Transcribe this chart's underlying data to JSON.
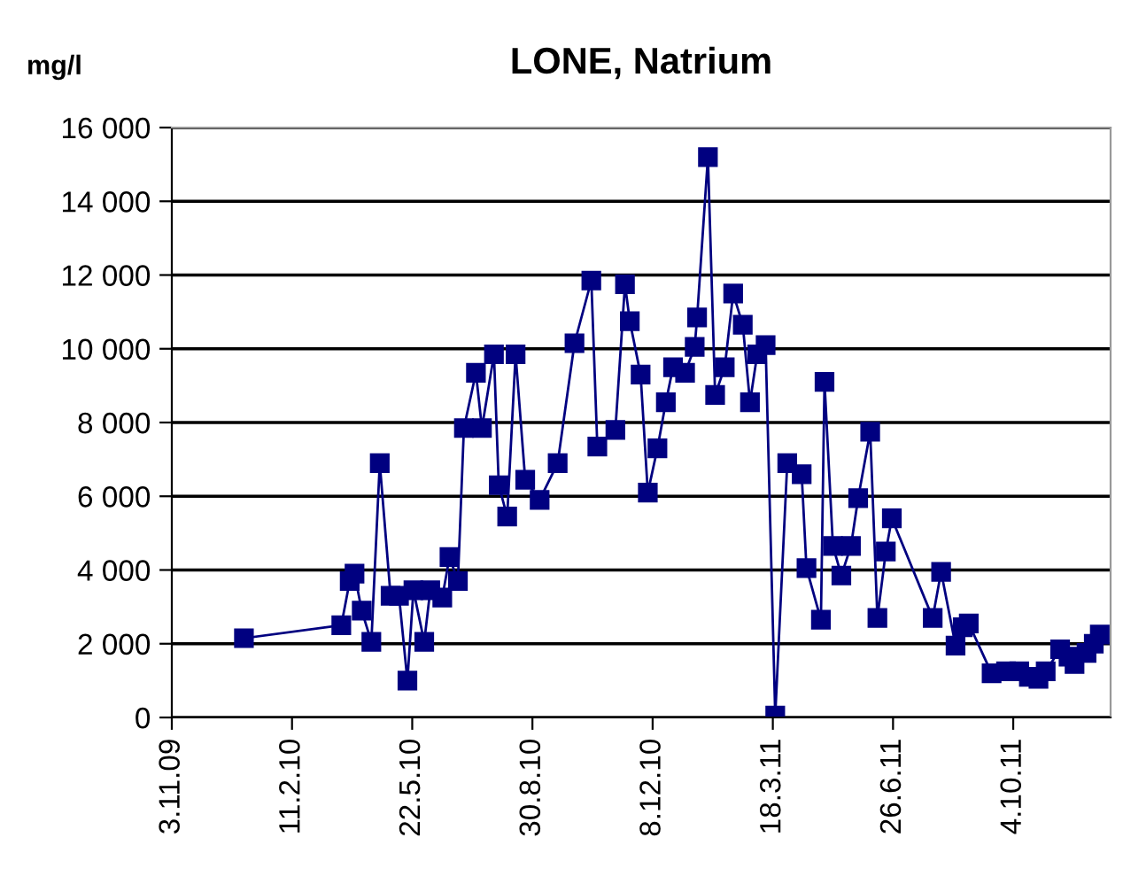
{
  "chart_data": {
    "type": "line",
    "title": "LONE, Natrium",
    "ylabel": "mg/l",
    "x": [
      "2010-01-02",
      "2010-03-24",
      "2010-03-31",
      "2010-04-04",
      "2010-04-10",
      "2010-04-18",
      "2010-04-25",
      "2010-05-04",
      "2010-05-11",
      "2010-05-18",
      "2010-05-23",
      "2010-06-01",
      "2010-06-06",
      "2010-06-16",
      "2010-06-22",
      "2010-06-29",
      "2010-07-04",
      "2010-07-14",
      "2010-07-19",
      "2010-07-29",
      "2010-08-02",
      "2010-08-09",
      "2010-08-16",
      "2010-08-24",
      "2010-09-05",
      "2010-09-20",
      "2010-10-04",
      "2010-10-18",
      "2010-10-23",
      "2010-11-07",
      "2010-11-15",
      "2010-11-19",
      "2010-11-28",
      "2010-12-04",
      "2010-12-12",
      "2010-12-19",
      "2010-12-25",
      "2011-01-04",
      "2011-01-12",
      "2011-01-14",
      "2011-01-23",
      "2011-01-29",
      "2011-02-06",
      "2011-02-13",
      "2011-02-21",
      "2011-02-27",
      "2011-03-05",
      "2011-03-12",
      "2011-03-20",
      "2011-03-30",
      "2011-04-11",
      "2011-04-15",
      "2011-04-27",
      "2011-04-30",
      "2011-05-07",
      "2011-05-14",
      "2011-05-22",
      "2011-05-28",
      "2011-06-07",
      "2011-06-13",
      "2011-06-20",
      "2011-06-25",
      "2011-07-29",
      "2011-08-05",
      "2011-08-17",
      "2011-08-23",
      "2011-08-28",
      "2011-09-16",
      "2011-09-28",
      "2011-10-09",
      "2011-10-17",
      "2011-10-25",
      "2011-10-31",
      "2011-11-12",
      "2011-11-19",
      "2011-11-24",
      "2011-12-04",
      "2011-12-10",
      "2011-12-15"
    ],
    "series": [
      {
        "color": "#000080",
        "values": [
          2150,
          2500,
          3700,
          3900,
          2900,
          2050,
          6900,
          3300,
          3300,
          1000,
          3450,
          2050,
          3450,
          3250,
          4350,
          3700,
          7850,
          9350,
          7850,
          9850,
          6300,
          5450,
          9850,
          6450,
          5900,
          6900,
          10150,
          11850,
          7350,
          7800,
          11750,
          10750,
          9300,
          6100,
          7300,
          8550,
          9500,
          9350,
          10050,
          10850,
          15200,
          8750,
          9500,
          11500,
          10650,
          8550,
          9850,
          10100,
          50,
          6900,
          6600,
          4050,
          2650,
          9100,
          4650,
          3850,
          4650,
          5950,
          7750,
          2700,
          4500,
          5400,
          2700,
          3950,
          1950,
          2450,
          2550,
          1200,
          1250,
          1250,
          1100,
          1050,
          1250,
          1850,
          1650,
          1450,
          1750,
          2000,
          2250
        ]
      }
    ],
    "xlim": [
      "2009-11-03",
      "2011-12-24"
    ],
    "xticks": [
      {
        "value": "2009-11-03",
        "label": "3.11.09"
      },
      {
        "value": "2010-02-11",
        "label": "11.2.10"
      },
      {
        "value": "2010-05-22",
        "label": "22.5.10"
      },
      {
        "value": "2010-08-30",
        "label": "30.8.10"
      },
      {
        "value": "2010-12-08",
        "label": "8.12.10"
      },
      {
        "value": "2011-03-18",
        "label": "18.3.11"
      },
      {
        "value": "2011-06-26",
        "label": "26.6.11"
      },
      {
        "value": "2011-10-04",
        "label": "4.10.11"
      }
    ],
    "ylim": [
      0,
      16000
    ],
    "yticks": [
      0,
      {
        "value": 2000,
        "label": "2 000"
      },
      {
        "value": 4000,
        "label": "4 000"
      },
      {
        "value": 6000,
        "label": "6 000"
      },
      {
        "value": 8000,
        "label": "8 000"
      },
      {
        "value": 10000,
        "label": "10 000"
      },
      {
        "value": 12000,
        "label": "12 000"
      },
      {
        "value": 14000,
        "label": "14 000"
      },
      {
        "value": 16000,
        "label": "16 000"
      }
    ],
    "grid": "y",
    "marker": "square",
    "line_style": "solid",
    "legend": false
  }
}
